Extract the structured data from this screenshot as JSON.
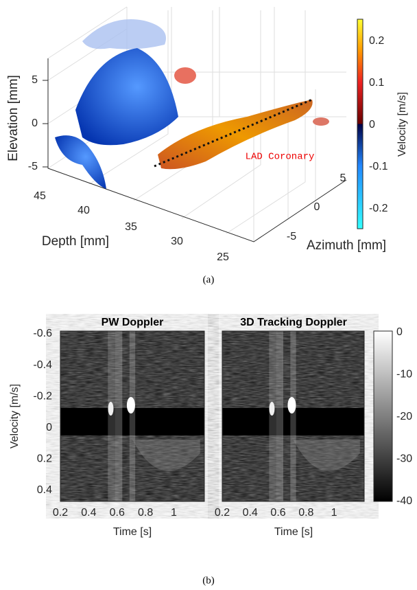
{
  "panel_a": {
    "caption": "(a)",
    "colorbar_label": "Velocity [m/s]",
    "colorbar_ticks": [
      "0.2",
      "0.1",
      "0",
      "-0.1",
      "-0.2"
    ],
    "elevation_label": "Elevation [mm]",
    "elevation_ticks": [
      "5",
      "0",
      "-5"
    ],
    "depth_label": "Depth [mm]",
    "depth_ticks": [
      "45",
      "40",
      "35",
      "30",
      "25"
    ],
    "azimuth_label": "Azimuth [mm]",
    "azimuth_ticks": [
      "5",
      "0",
      "-5"
    ],
    "annotation": "LAD Coronary"
  },
  "panel_b": {
    "caption": "(b)",
    "left_title": "PW Doppler",
    "right_title": "3D Tracking Doppler",
    "y_label": "Velocity [m/s]",
    "y_ticks": [
      "-0.6",
      "-0.4",
      "-0.2",
      "0",
      "0.2",
      "0.4"
    ],
    "x_label": "Time [s]",
    "x_ticks": [
      "0.2",
      "0.4",
      "0.6",
      "0.8",
      "1"
    ],
    "colorbar_ticks": [
      "0",
      "-10",
      "-20",
      "-30",
      "-40"
    ]
  }
}
